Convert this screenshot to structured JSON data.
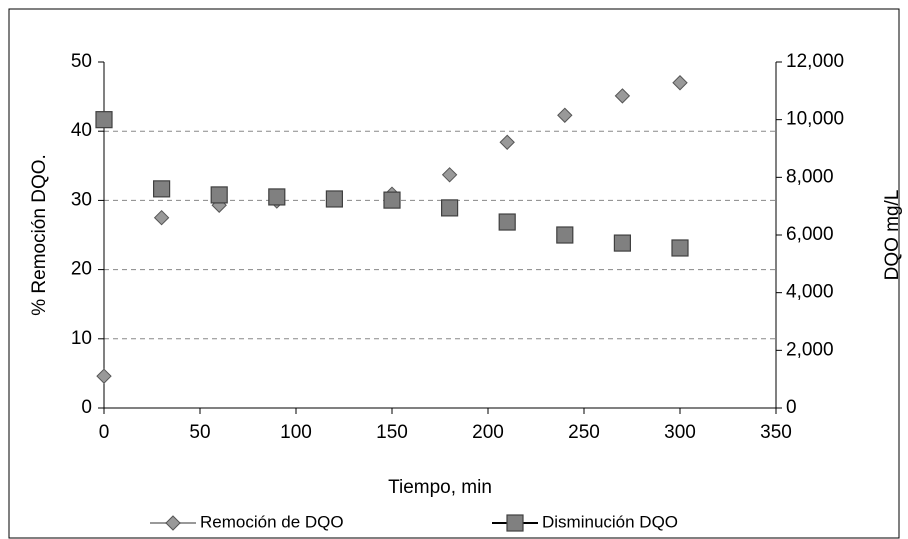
{
  "chart_data": {
    "type": "scatter",
    "x_label": "Tiempo, min",
    "y_label": "% Remoción DQO.",
    "y2_label": "DQO mg/L",
    "x": [
      0,
      30,
      60,
      90,
      120,
      150,
      180,
      210,
      240,
      270,
      300
    ],
    "series": [
      {
        "name": "Remoción  de DQO",
        "color": "#999999",
        "marker": "diamond",
        "values": [
          4.6,
          27.5,
          29.3,
          29.9,
          30.1,
          30.9,
          33.7,
          38.4,
          42.3,
          45.1,
          47.0
        ]
      },
      {
        "name": "Disminución DQO",
        "color": "#808080",
        "marker": "square",
        "axis": "y2",
        "values": [
          10000,
          7600,
          7390,
          7320,
          7250,
          7210,
          6940,
          6450,
          6000,
          5720,
          5550
        ]
      }
    ],
    "xlim": [
      0,
      350
    ],
    "xticks": [
      0,
      50,
      100,
      150,
      200,
      250,
      300,
      350
    ],
    "ylim": [
      0,
      50
    ],
    "yticks": [
      0,
      10,
      20,
      30,
      40,
      50
    ],
    "y2lim": [
      0,
      12000
    ],
    "y2ticks": [
      0,
      {
        "value": 2000,
        "label": "2,000"
      },
      {
        "value": 4000,
        "label": "4,000"
      },
      {
        "value": 6000,
        "label": "6,000"
      },
      {
        "value": 8000,
        "label": "8,000"
      },
      {
        "value": 10000,
        "label": "10,000"
      },
      {
        "value": 12000,
        "label": "12,000"
      }
    ],
    "grid": true,
    "legend": "bottom"
  }
}
